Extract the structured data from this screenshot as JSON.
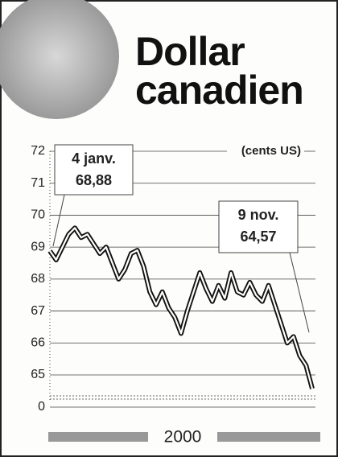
{
  "chart_data": {
    "type": "line",
    "title": "Dollar canadien",
    "unit_label": "(cents US)",
    "xlabel": "2000",
    "values": [
      68.88,
      68.6,
      69.0,
      69.4,
      69.6,
      69.3,
      69.4,
      69.1,
      68.8,
      69.0,
      68.5,
      68.0,
      68.3,
      68.8,
      68.9,
      68.4,
      67.6,
      67.2,
      67.6,
      67.1,
      66.8,
      66.3,
      67.0,
      67.6,
      68.2,
      67.7,
      67.3,
      67.8,
      67.4,
      68.2,
      67.6,
      67.5,
      67.9,
      67.5,
      67.3,
      67.8,
      67.2,
      66.6,
      66.0,
      66.2,
      65.6,
      65.3,
      64.57
    ],
    "ylim": [
      65,
      72
    ],
    "yticks": [
      65,
      66,
      67,
      68,
      69,
      70,
      71,
      72
    ],
    "ybreak_tick": 0,
    "grid": true,
    "color": "#111",
    "annotations": [
      {
        "date": "4 janv.",
        "value": 68.88,
        "label": "68,88"
      },
      {
        "date": "9 nov.",
        "value": 64.57,
        "label": "64,57"
      }
    ]
  }
}
